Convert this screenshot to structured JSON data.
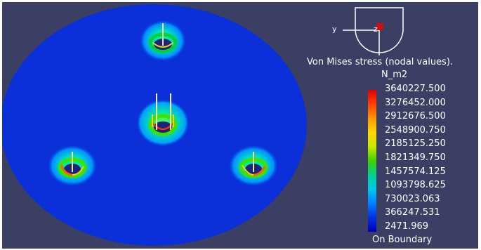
{
  "compass": {
    "y_label": "y",
    "z_label": "z"
  },
  "legend": {
    "title": "Von Mises stress (nodal values).",
    "unit": "N_m2",
    "values": [
      "3640227.500",
      "3276452.000",
      "2912676.500",
      "2548900.750",
      "2185125.250",
      "1821349.750",
      "1457574.125",
      "1093798.625",
      "730023.063",
      "366247.531",
      "2471.969"
    ],
    "footer": "On Boundary"
  },
  "colors": {
    "background": "#3b3f63",
    "plate": "#0b2fd8",
    "max": "#e00000",
    "min": "#0000b8"
  }
}
